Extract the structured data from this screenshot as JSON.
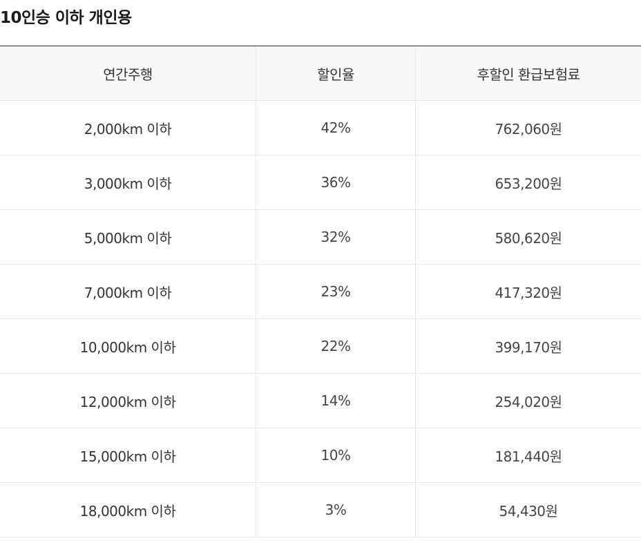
{
  "title": "10인승 이하 개인용",
  "table": {
    "headers": [
      "연간주행",
      "할인율",
      "후할인 환급보험료"
    ],
    "rows": [
      [
        "2,000km 이하",
        "42%",
        "762,060원"
      ],
      [
        "3,000km 이하",
        "36%",
        "653,200원"
      ],
      [
        "5,000km 이하",
        "32%",
        "580,620원"
      ],
      [
        "7,000km 이하",
        "23%",
        "417,320원"
      ],
      [
        "10,000km 이하",
        "22%",
        "399,170원"
      ],
      [
        "12,000km 이하",
        "14%",
        "254,020원"
      ],
      [
        "15,000km 이하",
        "10%",
        "181,440원"
      ],
      [
        "18,000km 이하",
        "3%",
        "54,430원"
      ]
    ]
  }
}
